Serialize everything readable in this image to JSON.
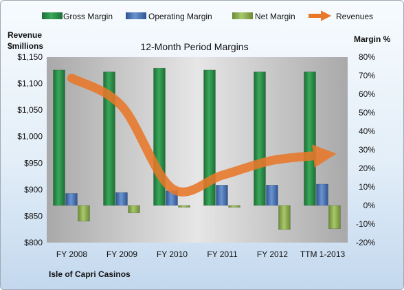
{
  "chart_data": {
    "type": "bar",
    "title": "12-Month Period Margins",
    "company": "Isle of Capri Casinos",
    "categories": [
      "FY 2008",
      "FY 2009",
      "FY 2010",
      "FY 2011",
      "FY 2012",
      "TTM 1-2013"
    ],
    "series": [
      {
        "name": "Gross Margin",
        "axis": "right",
        "type": "bar",
        "color": "#2e8b47",
        "values": [
          73,
          72,
          74,
          73,
          72,
          72
        ]
      },
      {
        "name": "Operating Margin",
        "axis": "right",
        "type": "bar",
        "color": "#4a72b0",
        "values": [
          6.5,
          7,
          8,
          11,
          11,
          11.5
        ]
      },
      {
        "name": "Net Margin",
        "axis": "right",
        "type": "bar",
        "color": "#8aaa4a",
        "values": [
          -8.5,
          -4,
          -1,
          -1,
          -13,
          -12.5
        ]
      },
      {
        "name": "Revenues",
        "axis": "left",
        "type": "line",
        "color": "#e8782a",
        "values": [
          1110,
          1057,
          902,
          927,
          955,
          965
        ]
      }
    ],
    "left_axis": {
      "label_line1": "Revenue",
      "label_line2": "$millions",
      "min": 800,
      "max": 1150,
      "step": 50,
      "tick_labels": [
        "$800",
        "$850",
        "$900",
        "$950",
        "$1,000",
        "$1,050",
        "$1,100",
        "$1,150"
      ]
    },
    "right_axis": {
      "label": "Margin %",
      "min": -20,
      "max": 80,
      "step": 10,
      "tick_labels": [
        "-20%",
        "-10%",
        "0%",
        "10%",
        "20%",
        "30%",
        "40%",
        "50%",
        "60%",
        "70%",
        "80%"
      ]
    },
    "legend_position": "top",
    "grid": false
  }
}
